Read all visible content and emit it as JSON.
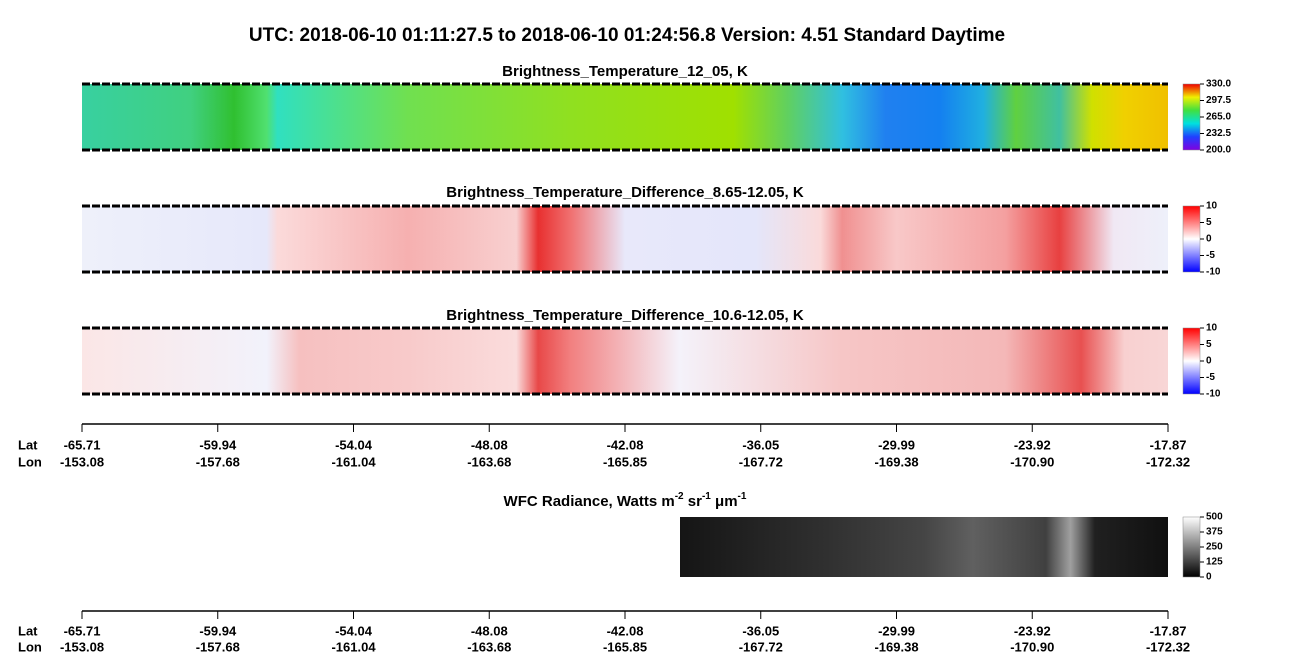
{
  "title": "UTC:  2018-06-10   01:11:27.5  to  2018-06-10   01:24:56.8    Version: 4.51  Standard Daytime",
  "panels": [
    {
      "title": "Brightness_Temperature_12_05, K",
      "colorbar": [
        {
          "value": 200,
          "label": "200.0"
        },
        {
          "value": 232.5,
          "label": "232.5"
        },
        {
          "value": 265,
          "label": "265.0"
        },
        {
          "value": 297.5,
          "label": "297.5"
        },
        {
          "value": 330,
          "label": "330.0"
        }
      ]
    },
    {
      "title": "Brightness_Temperature_Difference_8.65-12.05, K",
      "colorbar": [
        -10,
        -5,
        0,
        5,
        10
      ]
    },
    {
      "title": "Brightness_Temperature_Difference_10.6-12.05, K",
      "colorbar": [
        -10,
        -5,
        0,
        5,
        10
      ]
    },
    {
      "title_parts": [
        "WFC Radiance, Watts m",
        "-2",
        " sr",
        "-1",
        " μm",
        "-1"
      ],
      "colorbar": [
        0,
        125,
        250,
        375,
        500
      ]
    }
  ],
  "axis": {
    "lat_label": "Lat",
    "lon_label": "Lon",
    "lat": [
      "-65.71",
      "-59.94",
      "-54.04",
      "-48.08",
      "-42.08",
      "-36.05",
      "-29.99",
      "-23.92",
      "-17.87"
    ],
    "lon": [
      "-153.08",
      "-157.68",
      "-161.04",
      "-163.68",
      "-165.85",
      "-167.72",
      "-169.38",
      "-170.90",
      "-172.32"
    ]
  }
}
